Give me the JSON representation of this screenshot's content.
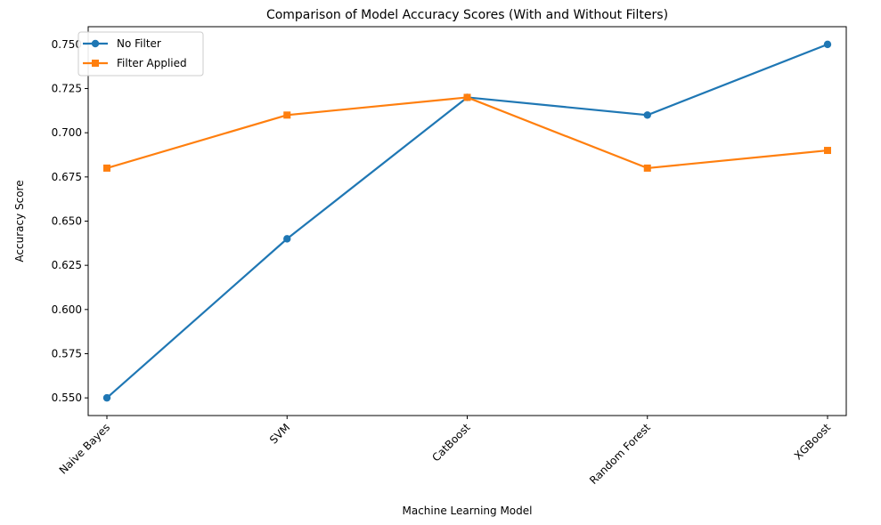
{
  "chart_data": {
    "type": "line",
    "title": "Comparison of Model Accuracy Scores (With and Without Filters)",
    "xlabel": "Machine Learning Model",
    "ylabel": "Accuracy Score",
    "categories": [
      "Naive Bayes",
      "SVM",
      "CatBoost",
      "Random Forest",
      "XGBoost"
    ],
    "ylim": [
      0.54,
      0.76
    ],
    "yticks": [
      0.55,
      0.575,
      0.6,
      0.625,
      0.65,
      0.675,
      0.7,
      0.725,
      0.75
    ],
    "ytick_labels": [
      "0.550",
      "0.575",
      "0.600",
      "0.625",
      "0.650",
      "0.675",
      "0.700",
      "0.725",
      "0.750"
    ],
    "grid": false,
    "legend_position": "top-left",
    "series": [
      {
        "name": "No Filter",
        "values": [
          0.55,
          0.64,
          0.72,
          0.71,
          0.75
        ],
        "color": "#1f77b4",
        "marker": "circle"
      },
      {
        "name": "Filter Applied",
        "values": [
          0.68,
          0.71,
          0.72,
          0.68,
          0.69
        ],
        "color": "#ff7f0e",
        "marker": "square"
      }
    ]
  }
}
